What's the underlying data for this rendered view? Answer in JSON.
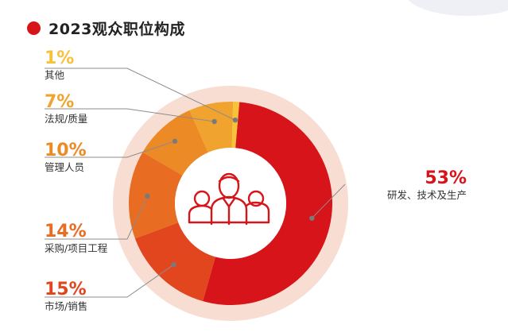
{
  "header": {
    "title": "2023观众职位构成"
  },
  "colors": {
    "accent": "#d7141a",
    "outer_ring": "#f8ddd3",
    "inner_circle": "#ffffff"
  },
  "icon": "people-group-icon",
  "chart_data": {
    "type": "pie",
    "title": "2023观众职位构成",
    "style": "donut",
    "slices": [
      {
        "label": "研发、技术及生产",
        "pct_text": "53%",
        "value": 53,
        "color": "#d7141a",
        "text_color": "#d7141a"
      },
      {
        "label": "市场/销售",
        "pct_text": "15%",
        "value": 15,
        "color": "#e2461f",
        "text_color": "#e2461f"
      },
      {
        "label": "采购/项目工程",
        "pct_text": "14%",
        "value": 14,
        "color": "#e86c22",
        "text_color": "#e86c22"
      },
      {
        "label": "管理人员",
        "pct_text": "10%",
        "value": 10,
        "color": "#ec8a26",
        "text_color": "#ec8a26"
      },
      {
        "label": "法规/质量",
        "pct_text": "7%",
        "value": 7,
        "color": "#f0a32e",
        "text_color": "#f0a32e"
      },
      {
        "label": "其他",
        "pct_text": "1%",
        "value": 1,
        "color": "#f5c23a",
        "text_color": "#f5c23a"
      }
    ]
  }
}
